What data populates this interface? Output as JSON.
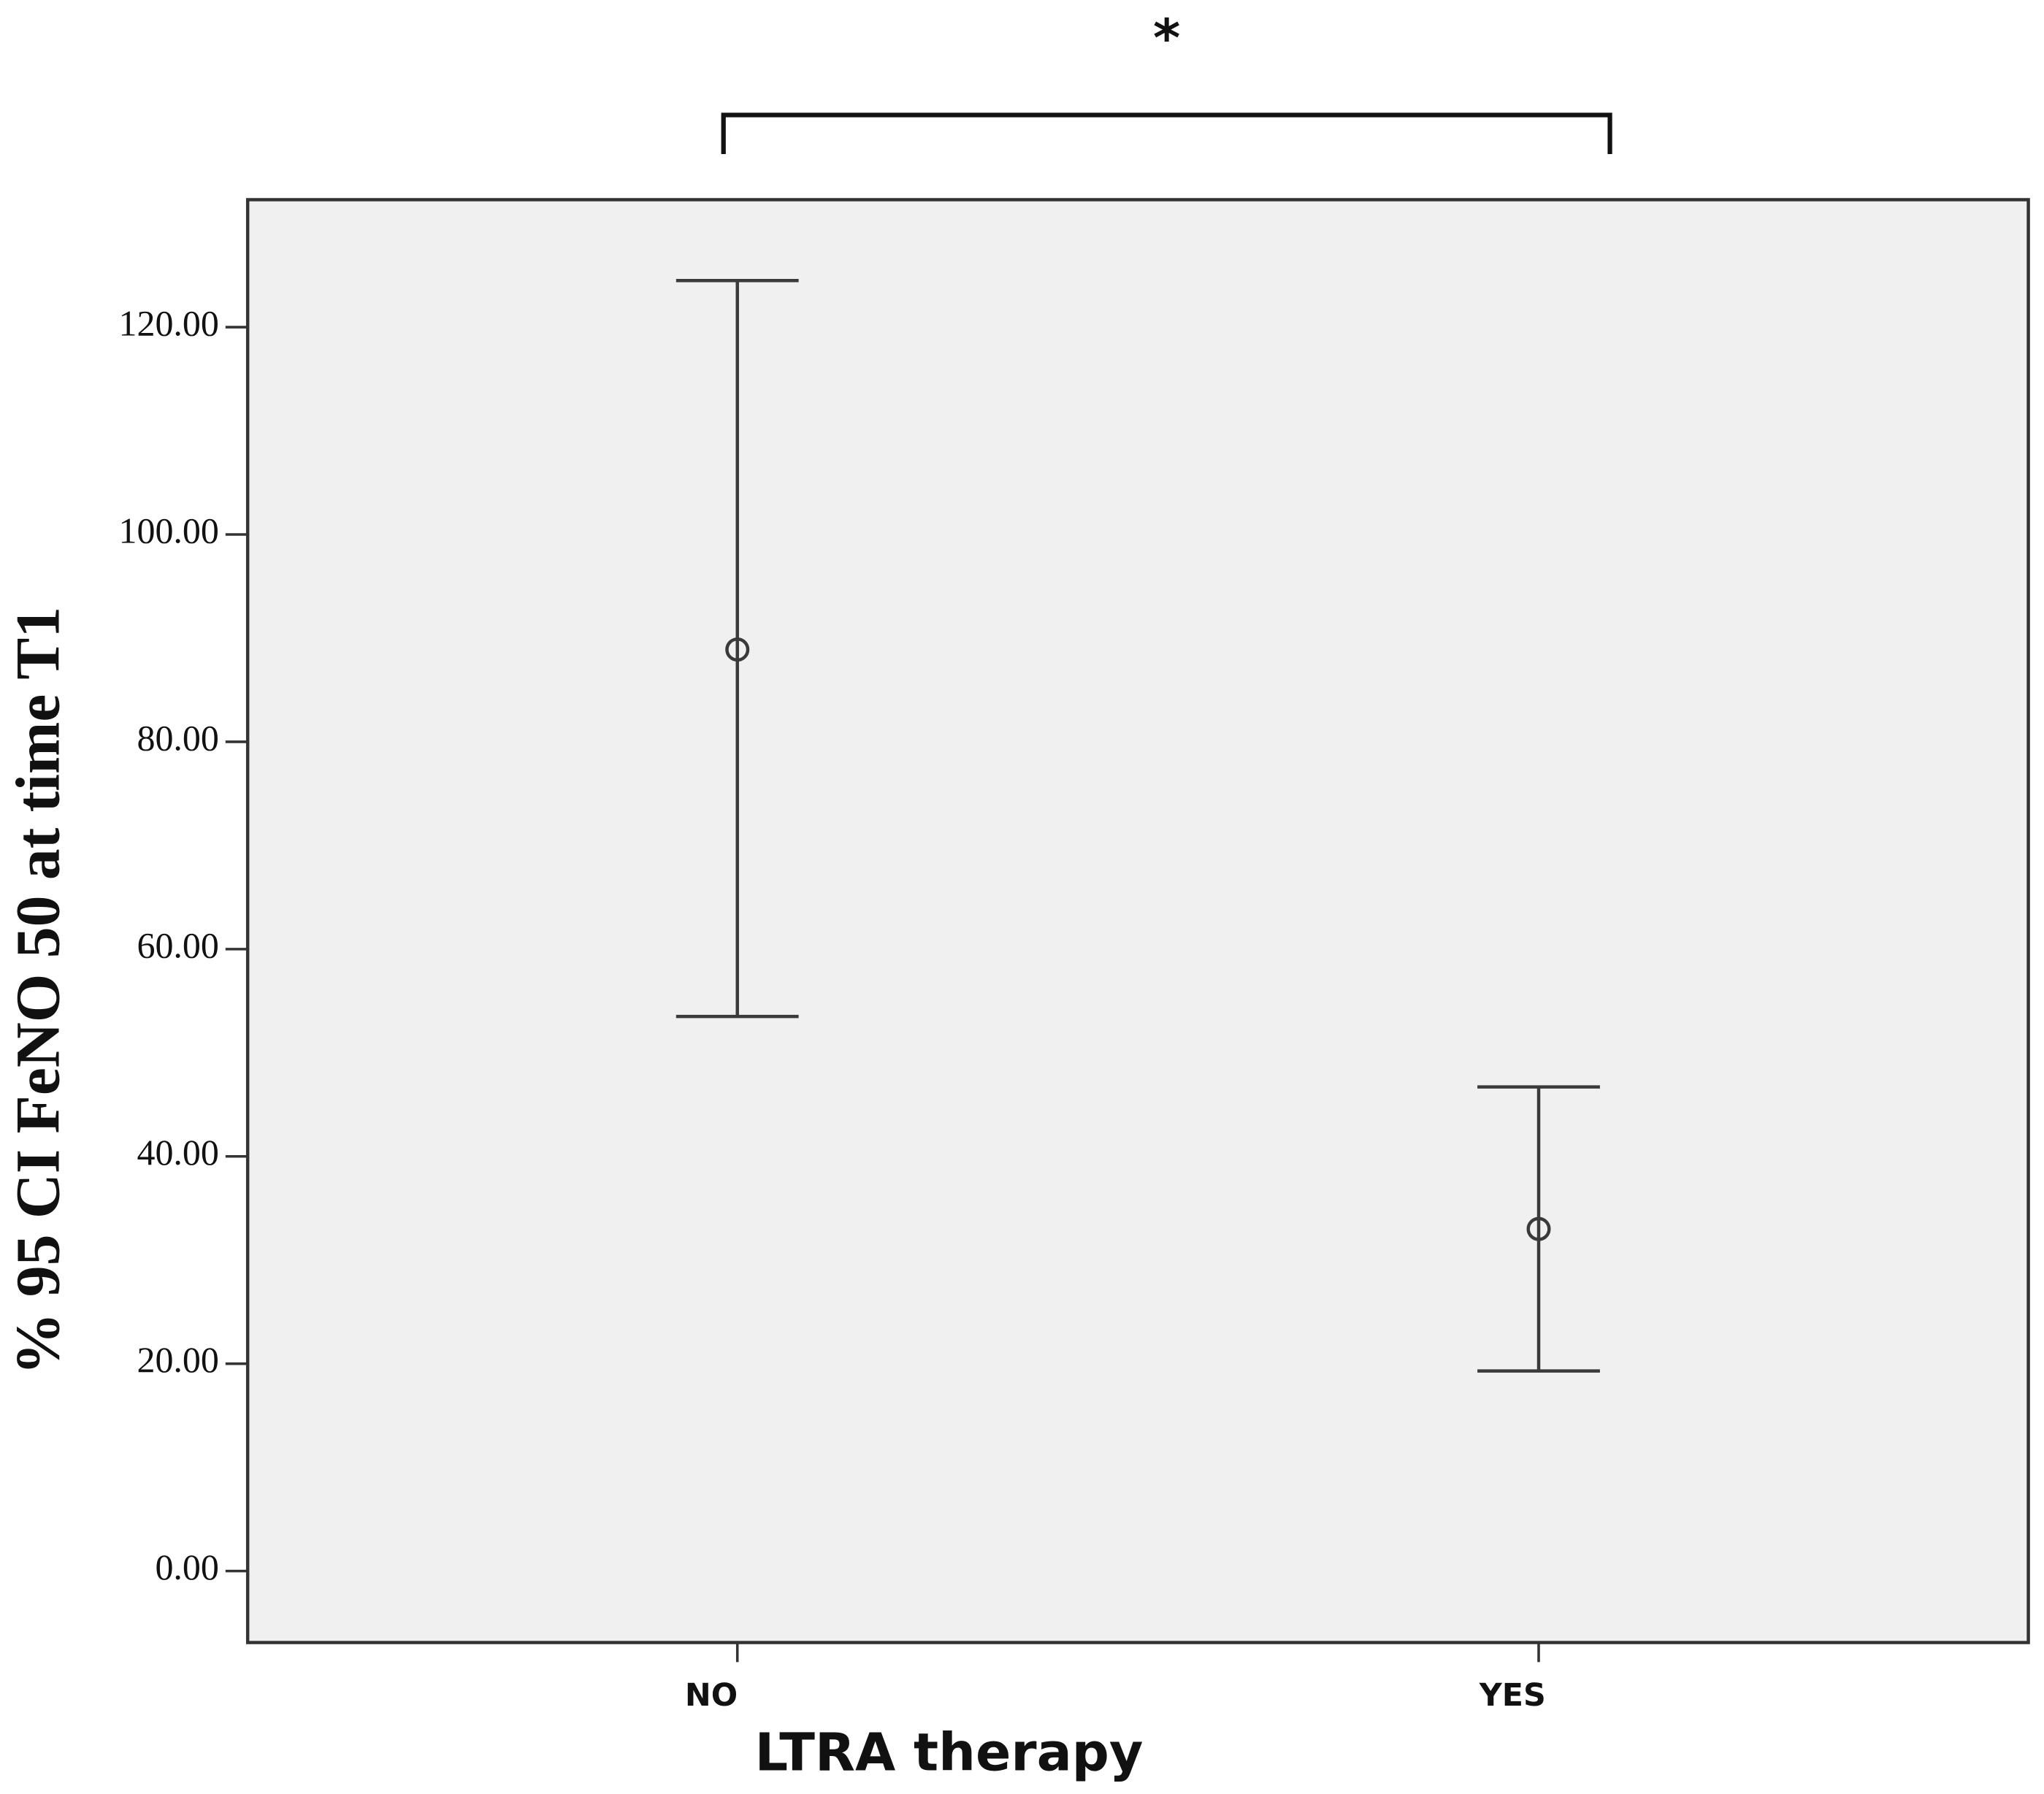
{
  "chart_data": {
    "type": "errorbar",
    "x_label": "LTRA therapy",
    "y_label": "% 95 CI FeNO 50 at time T1",
    "annotation": "*",
    "categories": [
      "NO",
      "YES"
    ],
    "values": [
      88.9,
      33.0
    ],
    "lower": [
      53.5,
      19.3
    ],
    "upper": [
      124.5,
      46.7
    ],
    "color": "#3a3a3a",
    "ylim": [
      -6.9,
      132.3
    ],
    "yticks": [
      {
        "value": 0,
        "label": "0.00"
      },
      {
        "value": 20,
        "label": "20.00"
      },
      {
        "value": 40,
        "label": "40.00"
      },
      {
        "value": 60,
        "label": "60.00"
      },
      {
        "value": 80,
        "label": "80.00"
      },
      {
        "value": 100,
        "label": "100.00"
      },
      {
        "value": 120,
        "label": "120.00"
      }
    ]
  }
}
